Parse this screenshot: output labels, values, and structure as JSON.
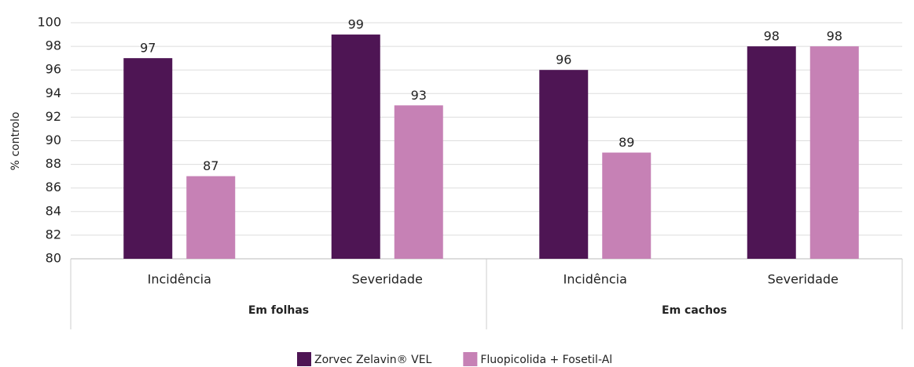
{
  "chart_data": {
    "type": "bar",
    "y_label": "% controlo",
    "categories": [
      "Incidência",
      "Severidade",
      "Incidência",
      "Severidade"
    ],
    "groups": [
      "Em folhas",
      "Em cachos"
    ],
    "series": [
      {
        "name": "Zorvec Zelavin® VEL",
        "color": "#4e1554",
        "values": [
          97,
          99,
          96,
          98
        ]
      },
      {
        "name": "Fluopicolida + Fosetil-Al",
        "color": "#c681b5",
        "values": [
          87,
          93,
          89,
          98
        ]
      }
    ],
    "ylim": [
      80,
      100
    ],
    "yticks": [
      80,
      82,
      84,
      86,
      88,
      90,
      92,
      94,
      96,
      98,
      100
    ],
    "grid": true
  }
}
